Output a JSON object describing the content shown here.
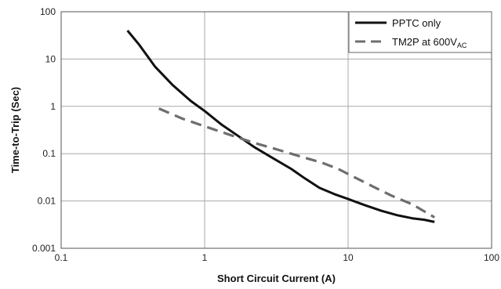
{
  "chart_data": {
    "type": "line",
    "xlabel": "Short Circuit Current (A)",
    "ylabel": "Time-to-Trip (Sec)",
    "x_scale": "log",
    "y_scale": "log",
    "xlim": [
      0.1,
      100
    ],
    "ylim": [
      0.001,
      100
    ],
    "x_ticks": [
      "0.1",
      "1",
      "10",
      "100"
    ],
    "y_ticks": [
      "0.001",
      "0.01",
      "0.1",
      "1",
      "10",
      "100"
    ],
    "grid": true,
    "legend_position": "top-right",
    "series": [
      {
        "name": "PPTC only",
        "style": "solid",
        "color": "#111111",
        "x": [
          0.29,
          0.35,
          0.45,
          0.6,
          0.8,
          1.0,
          1.3,
          1.7,
          2.2,
          3.0,
          4.0,
          5.0,
          6.3,
          8.0,
          10.0,
          13.0,
          17.0,
          22.0,
          28.0,
          34.0,
          40.0
        ],
        "y": [
          40,
          20,
          7,
          2.8,
          1.3,
          0.8,
          0.42,
          0.24,
          0.14,
          0.08,
          0.048,
          0.03,
          0.019,
          0.014,
          0.011,
          0.0082,
          0.0062,
          0.005,
          0.0043,
          0.004,
          0.0036
        ]
      },
      {
        "name": "TM2P at 600V",
        "name_sub": "AC",
        "style": "dashed",
        "color": "#6e6e6e",
        "x": [
          0.48,
          0.7,
          1.0,
          1.5,
          2.2,
          3.0,
          4.5,
          6.5,
          8.5,
          11.0,
          15.0,
          20.0,
          28.0,
          40.0
        ],
        "y": [
          0.9,
          0.55,
          0.38,
          0.25,
          0.17,
          0.13,
          0.09,
          0.065,
          0.048,
          0.032,
          0.02,
          0.013,
          0.0085,
          0.0045
        ]
      }
    ]
  }
}
